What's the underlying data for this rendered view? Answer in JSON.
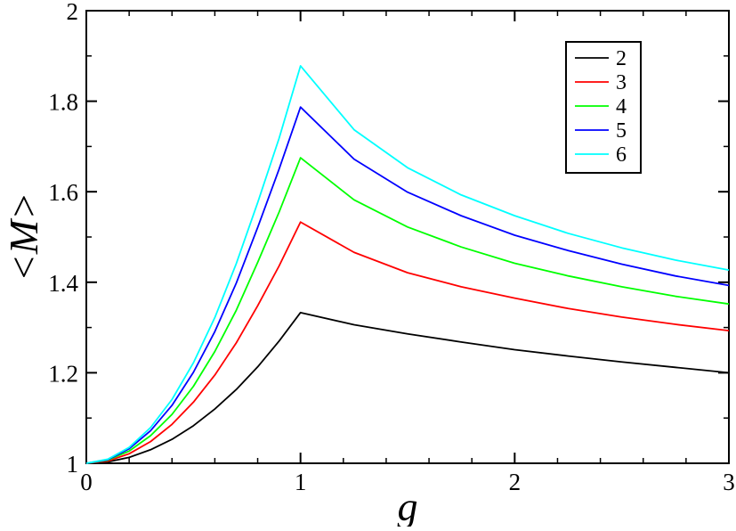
{
  "chart_data": {
    "type": "line",
    "xlabel": "g",
    "ylabel": "<M>",
    "xlim": [
      0,
      3
    ],
    "ylim": [
      1,
      2
    ],
    "x_ticks": [
      "0",
      "1",
      "2",
      "3"
    ],
    "y_ticks": [
      "1",
      "1.2",
      "1.4",
      "1.6",
      "1.8",
      "2"
    ],
    "grid": false,
    "legend_position": "top-right",
    "x": [
      0,
      0.1,
      0.2,
      0.3,
      0.4,
      0.5,
      0.6,
      0.7,
      0.8,
      0.9,
      1.0,
      1.25,
      1.5,
      1.75,
      2.0,
      2.25,
      2.5,
      2.75,
      3.0
    ],
    "series": [
      {
        "name": "2",
        "color": "#000000",
        "values": [
          1.0,
          1.003,
          1.013,
          1.03,
          1.053,
          1.083,
          1.12,
          1.163,
          1.213,
          1.27,
          1.333,
          1.306,
          1.286,
          1.268,
          1.251,
          1.237,
          1.224,
          1.212,
          1.2
        ]
      },
      {
        "name": "3",
        "color": "#ff0000",
        "values": [
          1.0,
          1.005,
          1.021,
          1.048,
          1.086,
          1.135,
          1.195,
          1.266,
          1.348,
          1.436,
          1.533,
          1.466,
          1.421,
          1.39,
          1.365,
          1.342,
          1.323,
          1.307,
          1.293
        ]
      },
      {
        "name": "4",
        "color": "#00ff00",
        "values": [
          1.0,
          1.007,
          1.027,
          1.061,
          1.108,
          1.17,
          1.247,
          1.338,
          1.444,
          1.555,
          1.675,
          1.582,
          1.522,
          1.478,
          1.442,
          1.414,
          1.39,
          1.369,
          1.352
        ]
      },
      {
        "name": "5",
        "color": "#0000ff",
        "values": [
          1.0,
          1.008,
          1.032,
          1.072,
          1.128,
          1.201,
          1.291,
          1.398,
          1.521,
          1.65,
          1.787,
          1.672,
          1.599,
          1.547,
          1.504,
          1.47,
          1.44,
          1.414,
          1.393
        ]
      },
      {
        "name": "6",
        "color": "#00ffff",
        "values": [
          1.0,
          1.009,
          1.035,
          1.079,
          1.141,
          1.222,
          1.322,
          1.441,
          1.576,
          1.718,
          1.878,
          1.737,
          1.653,
          1.593,
          1.547,
          1.508,
          1.476,
          1.449,
          1.427
        ]
      }
    ]
  }
}
